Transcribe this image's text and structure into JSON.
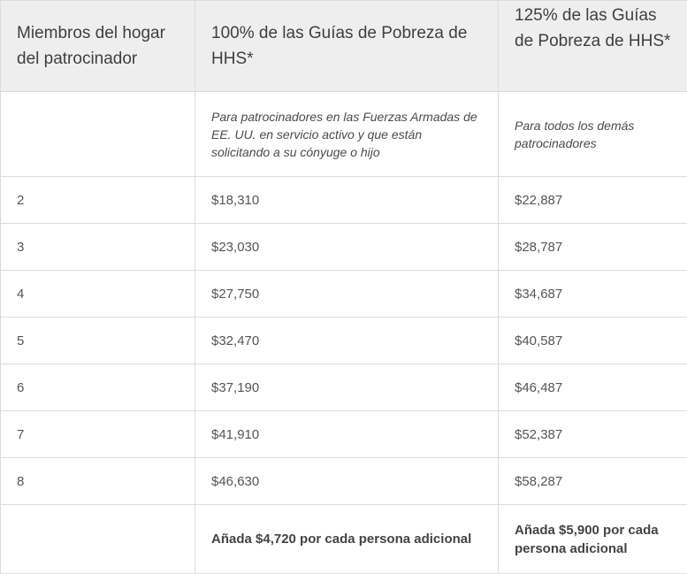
{
  "table": {
    "headers": [
      "Miembros del hogar del patrocinador",
      "100% de las Guías de Pobreza de HHS*",
      "125% de las Guías de Pobreza de HHS*"
    ],
    "subheader": [
      "",
      "Para patrocinadores en las Fuerzas Armadas de EE. UU. en servicio activo y que están solicitando a su cónyuge o hijo",
      "Para todos los demás patrocinadores"
    ],
    "rows": [
      {
        "members": "2",
        "pct100": "$18,310",
        "pct125": "$22,887"
      },
      {
        "members": "3",
        "pct100": "$23,030",
        "pct125": "$28,787"
      },
      {
        "members": "4",
        "pct100": "$27,750",
        "pct125": "$34,687"
      },
      {
        "members": "5",
        "pct100": "$32,470",
        "pct125": "$40,587"
      },
      {
        "members": "6",
        "pct100": "$37,190",
        "pct125": "$46,487"
      },
      {
        "members": "7",
        "pct100": "$41,910",
        "pct125": "$52,387"
      },
      {
        "members": "8",
        "pct100": "$46,630",
        "pct125": "$58,287"
      }
    ],
    "footer": [
      "",
      "Añada $4,720 por cada persona adicional",
      "Añada $5,900 por cada persona adicional"
    ]
  }
}
